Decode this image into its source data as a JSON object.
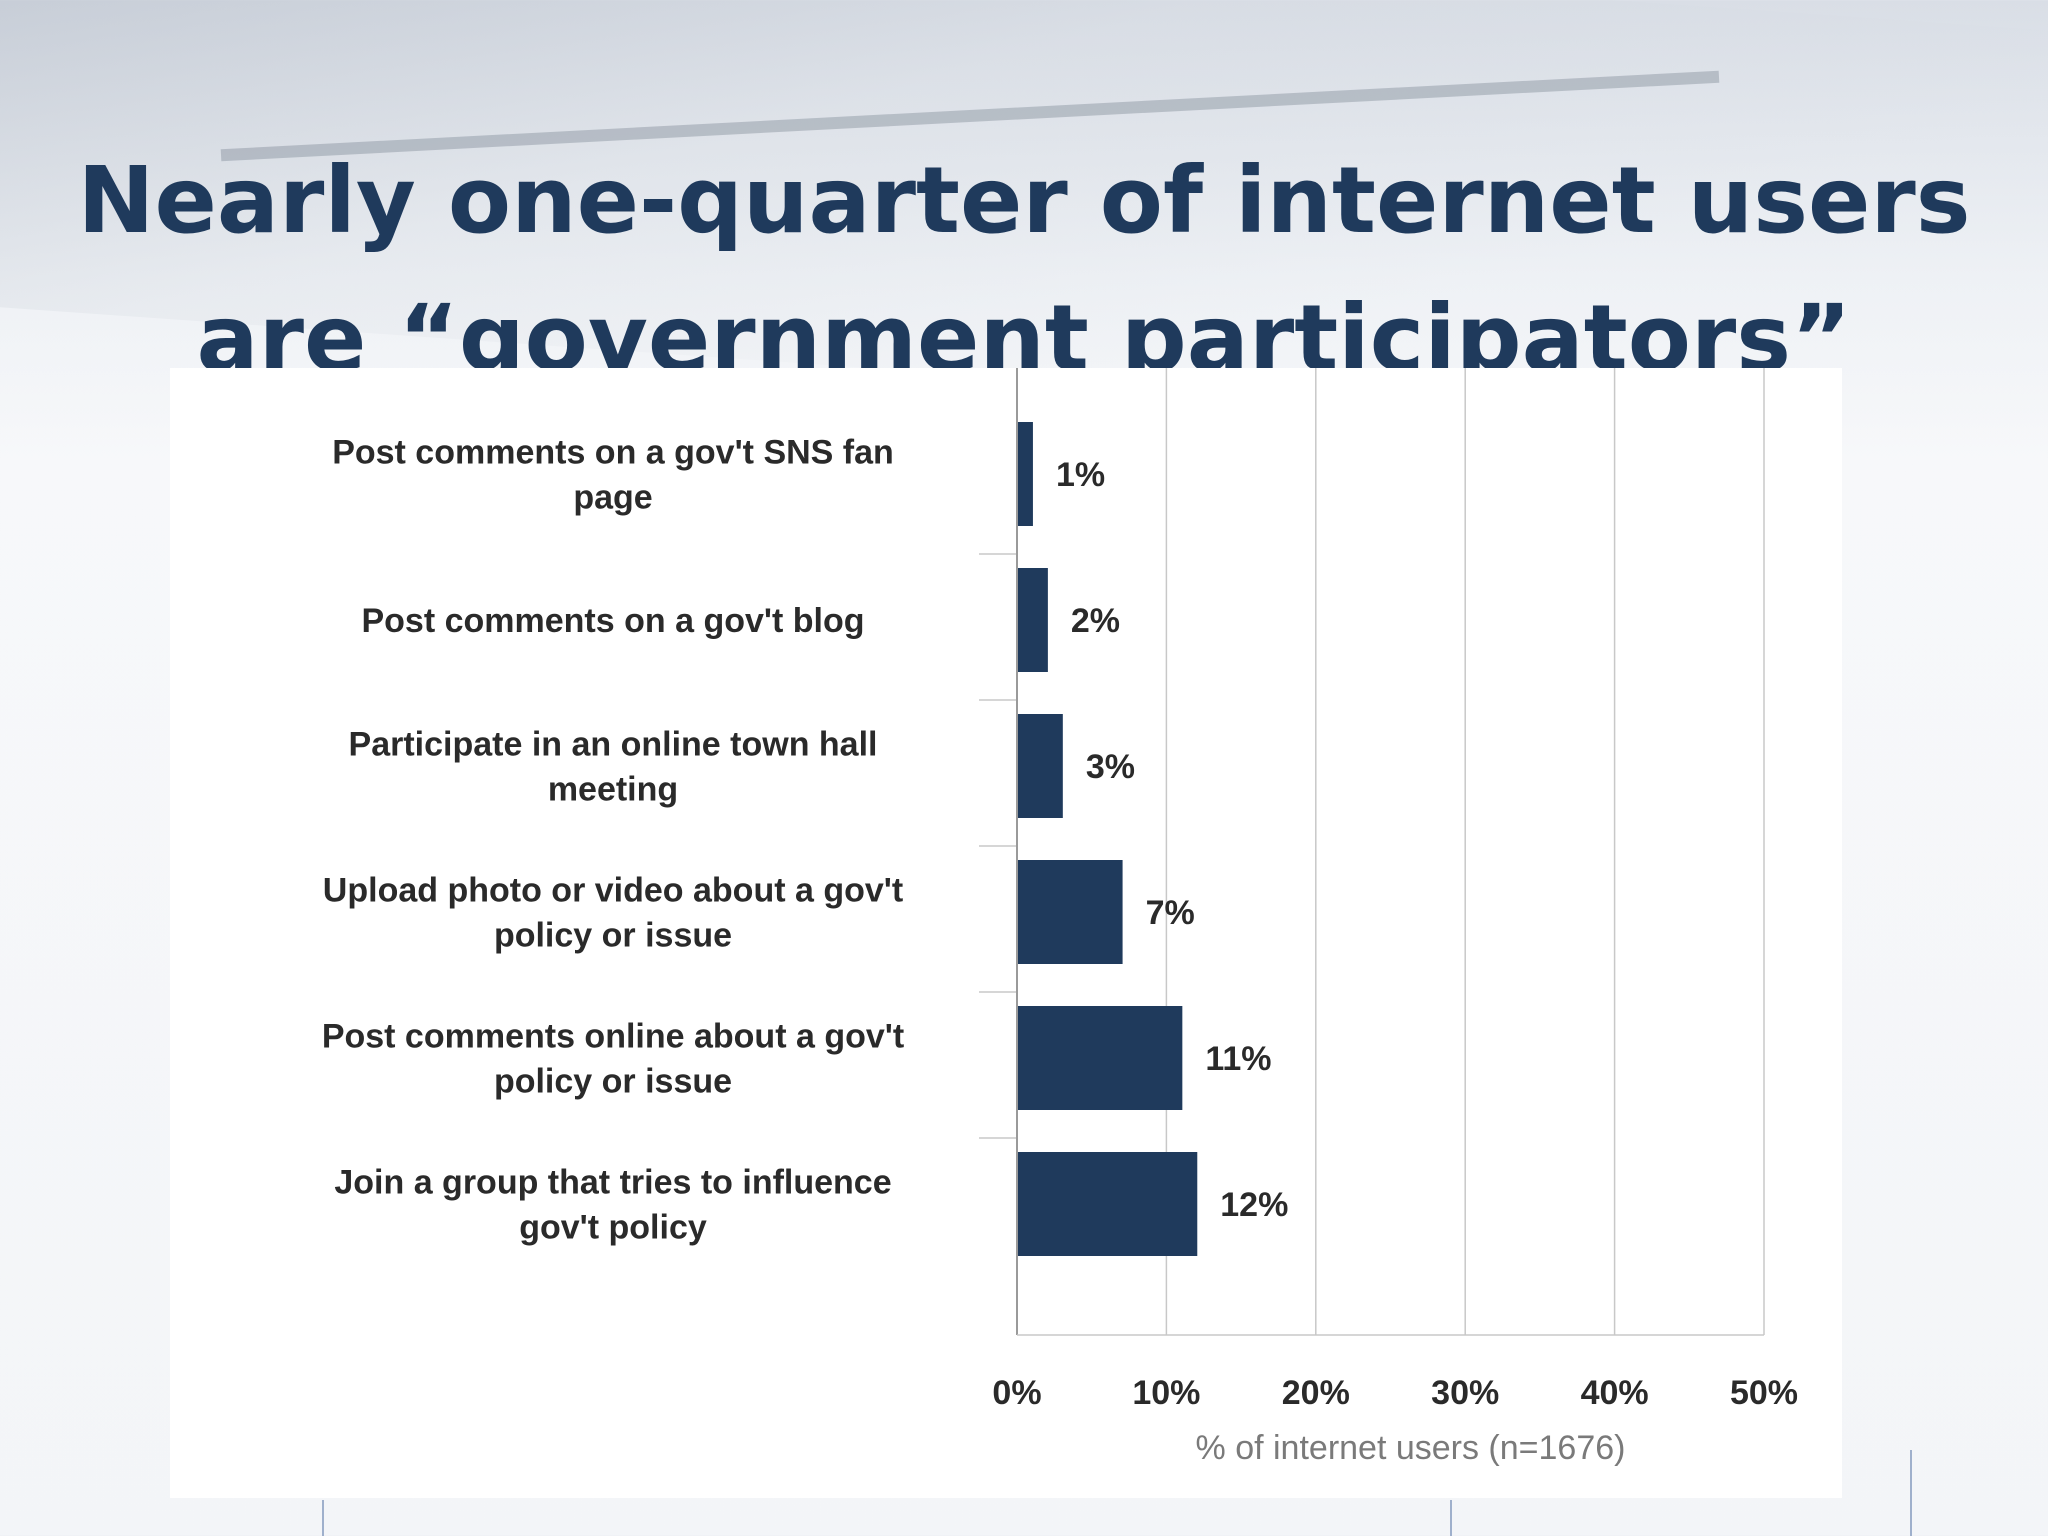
{
  "slide": {
    "title_line1": "Nearly one-quarter of internet users",
    "title_line2": "are “government participators”"
  },
  "colors": {
    "bar": "#1f3a5c",
    "title": "#1f3a5c",
    "grid": "#c8c8c8",
    "text": "#2a2a2a",
    "axis_label": "#7a7a7a"
  },
  "chart_data": {
    "type": "bar",
    "orientation": "horizontal",
    "categories": [
      [
        "Post comments on a gov't SNS fan",
        "page"
      ],
      [
        "Post comments on a gov't blog"
      ],
      [
        "Participate in an online town hall",
        "meeting"
      ],
      [
        "Upload photo or video about a gov't",
        "policy or issue"
      ],
      [
        "Post comments online about a gov't",
        "policy or issue"
      ],
      [
        "Join a group that tries to influence",
        "gov't policy"
      ]
    ],
    "values": [
      1,
      2,
      3,
      7,
      11,
      12
    ],
    "data_labels": [
      "1%",
      "2%",
      "3%",
      "7%",
      "11%",
      "12%"
    ],
    "xlabel": "% of internet users (n=1676)",
    "xlim": [
      0,
      50
    ],
    "xticks": [
      "0%",
      "10%",
      "20%",
      "30%",
      "40%",
      "50%"
    ],
    "xtick_values": [
      0,
      10,
      20,
      30,
      40,
      50
    ],
    "grid": true
  }
}
